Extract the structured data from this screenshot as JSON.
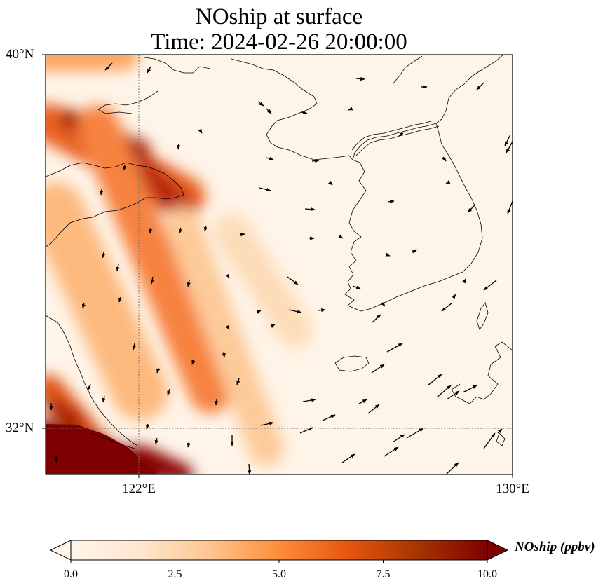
{
  "title": {
    "line1": "NOship at surface",
    "line2": "Time: 2024-02-26 20:00:00"
  },
  "map": {
    "lat_range": [
      31.0,
      40.0
    ],
    "lon_range": [
      120.0,
      130.0
    ],
    "lat_ticks": [
      {
        "value": 40,
        "label": "40°N"
      },
      {
        "value": 32,
        "label": "32°N"
      }
    ],
    "lon_ticks": [
      {
        "value": 122,
        "label": "122°E"
      },
      {
        "value": 130,
        "label": "130°E"
      }
    ],
    "gridlines": "dotted",
    "colormap": [
      "#fff5eb",
      "#fdd9b1",
      "#fdab68",
      "#f3702f",
      "#d3400b",
      "#a11004",
      "#7f0000"
    ]
  },
  "colorbar": {
    "label": "NOship (ppbv)",
    "ticks": [
      "0.0",
      "2.5",
      "5.0",
      "7.5",
      "10.0"
    ],
    "range": [
      0,
      10
    ],
    "extend": "both"
  }
}
